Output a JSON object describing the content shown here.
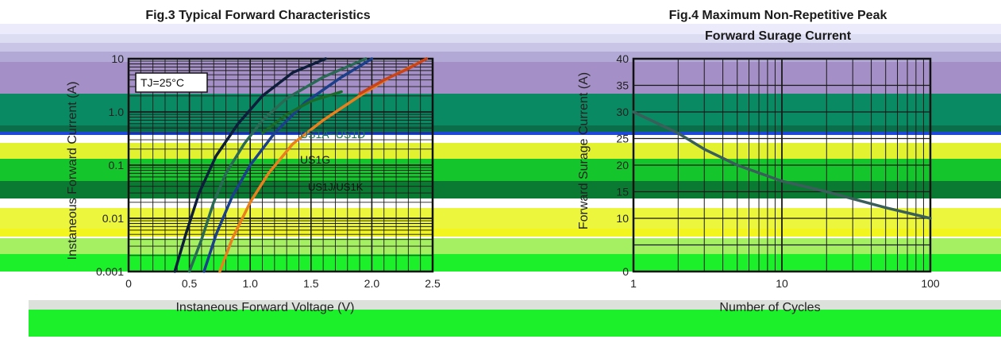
{
  "bands": [
    {
      "color": "#ecebfb"
    },
    {
      "color": "#dcdcf2"
    },
    {
      "color": "#c8c5e6"
    },
    {
      "color": "#b3a9d6"
    },
    {
      "color": "#a48fc6"
    },
    {
      "color": "#098a62"
    },
    {
      "color": "#0b6e4a"
    },
    {
      "color": "#1f47d8"
    },
    {
      "color": "#e3f230"
    },
    {
      "color": "#14c62b"
    },
    {
      "color": "#0a7a32"
    },
    {
      "color": "#ebf63c"
    },
    {
      "color": "#f3f61e"
    },
    {
      "color": "#a5f062"
    },
    {
      "color": "#1cf02a"
    }
  ],
  "chart_data": [
    {
      "type": "line",
      "title": "Fig.3  Typical Forward Characteristics",
      "xlabel": "Instaneous Forward Voltage (V)",
      "ylabel": "Instaneous Forward Current (A)",
      "xlim": [
        0,
        2.5
      ],
      "ylim": [
        0.001,
        10
      ],
      "yscale": "log",
      "x_ticks": [
        "0",
        "0.5",
        "1.0",
        "1.5",
        "2.0",
        "2.5"
      ],
      "y_ticks": [
        "0.001",
        "0.01",
        "0.1",
        "1.0",
        "10"
      ],
      "grid": true,
      "annotation": "TJ=25°C",
      "series": [
        {
          "name": "US1A~US1D",
          "color": "#2a6a55",
          "x": [
            0.5,
            0.6,
            0.7,
            0.8,
            0.95,
            1.1,
            1.3,
            1.6,
            1.95
          ],
          "y": [
            0.001,
            0.004,
            0.02,
            0.07,
            0.25,
            0.7,
            1.8,
            4.5,
            10
          ]
        },
        {
          "name": "",
          "color": "#1c3f8a",
          "x": [
            0.62,
            0.72,
            0.85,
            1.0,
            1.2,
            1.45,
            1.75,
            2.0
          ],
          "y": [
            0.001,
            0.005,
            0.025,
            0.1,
            0.4,
            1.5,
            4.5,
            10
          ]
        },
        {
          "name": "US1G",
          "color": "#e8801e",
          "x": [
            0.75,
            0.85,
            1.0,
            1.15,
            1.35,
            1.6,
            1.9,
            2.15,
            2.45
          ],
          "y": [
            0.001,
            0.004,
            0.02,
            0.07,
            0.25,
            0.7,
            2.0,
            4.5,
            10
          ]
        },
        {
          "name": "US1J/US1K",
          "color": "#0e1e3a",
          "x": [
            0.38,
            0.47,
            0.58,
            0.72,
            0.9,
            1.1,
            1.35,
            1.62
          ],
          "y": [
            0.001,
            0.005,
            0.03,
            0.15,
            0.6,
            2.0,
            5.5,
            10
          ]
        }
      ],
      "extra_series": [
        {
          "color": "#c8421a",
          "x": [
            1.9,
            2.1,
            2.3,
            2.45
          ],
          "y": [
            2.2,
            4.0,
            6.5,
            10
          ]
        },
        {
          "color": "#1a6a2a",
          "x": [
            1.1,
            1.3,
            1.5,
            1.75
          ],
          "y": [
            0.4,
            0.9,
            1.6,
            2.4
          ]
        }
      ]
    },
    {
      "type": "line",
      "title": "Fig.4  Maximum Non-Repetitive Peak",
      "subtitle": "Forward Surage Current",
      "xlabel": "Number of Cycles",
      "ylabel": "Forward Surage Current (A)",
      "xlim": [
        1,
        100
      ],
      "ylim": [
        0,
        40
      ],
      "xscale": "log",
      "x_ticks": [
        "1",
        "10",
        "100"
      ],
      "y_ticks": [
        "0",
        "10",
        "15",
        "20",
        "25",
        "30",
        "35",
        "40"
      ],
      "grid": true,
      "series": [
        {
          "name": "",
          "color": "#3a5e5a",
          "x": [
            1,
            2,
            3,
            5,
            10,
            20,
            50,
            100
          ],
          "y": [
            30,
            26,
            23,
            20,
            17,
            15,
            12,
            10
          ]
        }
      ]
    }
  ]
}
